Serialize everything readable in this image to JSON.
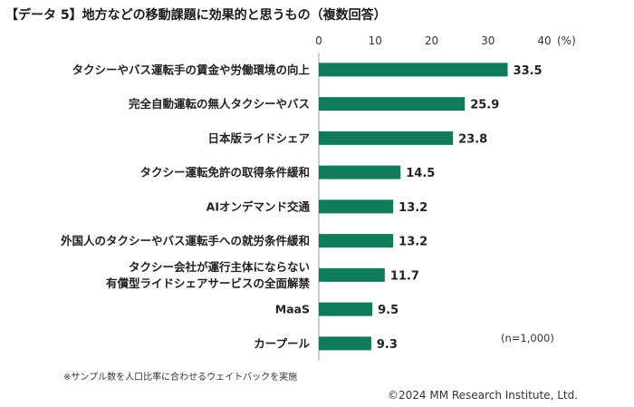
{
  "title": "【データ 5】地方などの移動課題に効果的と思うもの（複数回答）",
  "note": "※サンプル数を人口比率に合わせるウェイトバックを実施",
  "copyright": "©2024 MM Research Institute, Ltd.",
  "sample_label": "(n=1,000)",
  "bar_color": "#0f7a5c",
  "chart_data": {
    "type": "bar",
    "orientation": "horizontal",
    "categories": [
      "タクシーやバス運転手の賃金や労働環境の向上",
      "完全自動運転の無人タクシーやバス",
      "日本版ライドシェア",
      "タクシー運転免許の取得条件緩和",
      "AIオンデマンド交通",
      "外国人のタクシーやバス運転手への就労条件緩和",
      "タクシー会社が運行主体にならない\n有償型ライドシェアサービスの全面解禁",
      "MaaS",
      "カープール"
    ],
    "values": [
      33.5,
      25.9,
      23.8,
      14.5,
      13.2,
      13.2,
      11.7,
      9.5,
      9.3
    ],
    "xlim": [
      0,
      40
    ],
    "xticks": [
      "0",
      "10",
      "20",
      "30",
      "40"
    ],
    "xunit": "(%)",
    "grid": false
  }
}
